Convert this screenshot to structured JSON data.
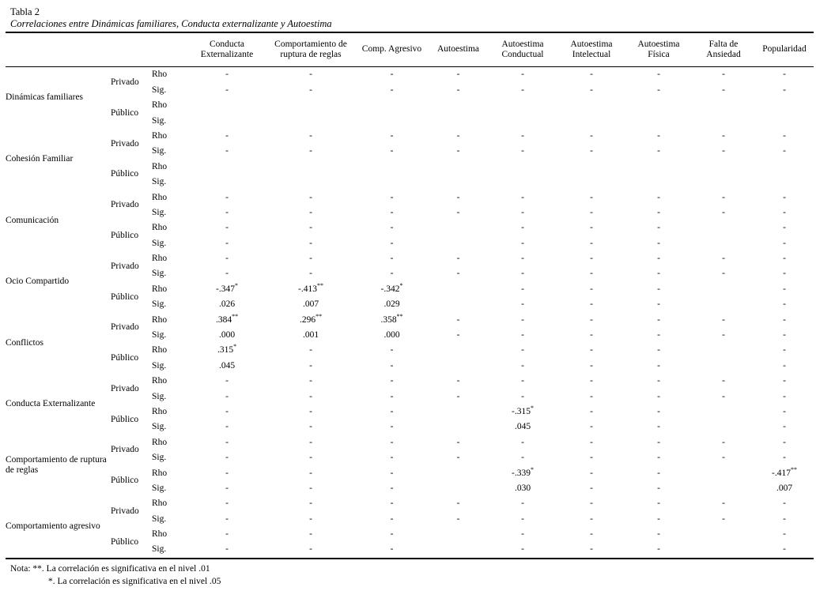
{
  "doc": {
    "table_number": "Tabla 2",
    "table_title": "Correlaciones entre Dinámicas familiares, Conducta externalizante y Autoestima",
    "notes": [
      "Nota: **. La correlación es significativa en el nivel .01",
      "*. La correlación es significativa en el nivel .05"
    ]
  },
  "table": {
    "columns": [
      "Conducta Externalizante",
      "Comportamiento de ruptura de reglas",
      "Comp. Agresivo",
      "Autoestima",
      "Autoestima Conductual",
      "Autoestima Intelectual",
      "Autoestima Física",
      "Falta de Ansiedad",
      "Popularidad"
    ],
    "labels": {
      "privado": "Privado",
      "publico": "Público",
      "rho": "Rho",
      "sig": "Sig."
    },
    "groups": [
      {
        "name": "Dinámicas familiares",
        "privado_rho": [
          "-",
          "-",
          "-",
          "-",
          "-",
          "-",
          "-",
          "-",
          "-"
        ],
        "privado_sig": [
          "-",
          "-",
          "-",
          "-",
          "-",
          "-",
          "-",
          "-",
          "-"
        ],
        "publico_rho": [
          "",
          "",
          "",
          "",
          "",
          "",
          "",
          "",
          ""
        ],
        "publico_sig": [
          "",
          "",
          "",
          "",
          "",
          "",
          "",
          "",
          ""
        ]
      },
      {
        "name": "Cohesión Familiar",
        "privado_rho": [
          "-",
          "-",
          "-",
          "-",
          "-",
          "-",
          "-",
          "-",
          "-"
        ],
        "privado_sig": [
          "-",
          "-",
          "-",
          "-",
          "-",
          "-",
          "-",
          "-",
          "-"
        ],
        "publico_rho": [
          "",
          "",
          "",
          "",
          "",
          "",
          "",
          "",
          ""
        ],
        "publico_sig": [
          "",
          "",
          "",
          "",
          "",
          "",
          "",
          "",
          ""
        ]
      },
      {
        "name": "Comunicación",
        "privado_rho": [
          "-",
          "-",
          "-",
          "-",
          "-",
          "-",
          "-",
          "-",
          "-"
        ],
        "privado_sig": [
          "-",
          "-",
          "-",
          "-",
          "-",
          "-",
          "-",
          "-",
          "-"
        ],
        "publico_rho": [
          "-",
          "-",
          "-",
          "",
          "-",
          "-",
          "-",
          "",
          "-"
        ],
        "publico_sig": [
          "-",
          "-",
          "-",
          "",
          "-",
          "-",
          "-",
          "",
          "-"
        ]
      },
      {
        "name": "Ocio Compartido",
        "privado_rho": [
          "-",
          "-",
          "-",
          "-",
          "-",
          "-",
          "-",
          "-",
          "-"
        ],
        "privado_sig": [
          "-",
          "-",
          "-",
          "-",
          "-",
          "-",
          "-",
          "-",
          "-"
        ],
        "publico_rho": [
          "-.347*",
          "-.413**",
          "-.342*",
          "",
          "-",
          "-",
          "-",
          "",
          "-"
        ],
        "publico_sig": [
          ".026",
          ".007",
          ".029",
          "",
          "-",
          "-",
          "-",
          "",
          "-"
        ]
      },
      {
        "name": "Conflictos",
        "privado_rho": [
          ".384**",
          ".296**",
          ".358**",
          "-",
          "-",
          "-",
          "-",
          "-",
          "-"
        ],
        "privado_sig": [
          ".000",
          ".001",
          ".000",
          "-",
          "-",
          "-",
          "-",
          "-",
          "-"
        ],
        "publico_rho": [
          ".315*",
          "-",
          "-",
          "",
          "-",
          "-",
          "-",
          "",
          "-"
        ],
        "publico_sig": [
          ".045",
          "-",
          "-",
          "",
          "-",
          "-",
          "-",
          "",
          "-"
        ]
      },
      {
        "name": "Conducta Externalizante",
        "privado_rho": [
          "-",
          "-",
          "-",
          "-",
          "-",
          "-",
          "-",
          "-",
          "-"
        ],
        "privado_sig": [
          "-",
          "-",
          "-",
          "-",
          "-",
          "-",
          "-",
          "-",
          "-"
        ],
        "publico_rho": [
          "-",
          "-",
          "-",
          "",
          "-.315*",
          "-",
          "-",
          "",
          "-"
        ],
        "publico_sig": [
          "-",
          "-",
          "-",
          "",
          ".045",
          "-",
          "-",
          "",
          "-"
        ]
      },
      {
        "name": "Comportamiento de ruptura de reglas",
        "privado_rho": [
          "-",
          "-",
          "-",
          "-",
          "-",
          "-",
          "-",
          "-",
          "-"
        ],
        "privado_sig": [
          "-",
          "-",
          "-",
          "-",
          "-",
          "-",
          "-",
          "-",
          "-"
        ],
        "publico_rho": [
          "-",
          "-",
          "-",
          "",
          "-.339*",
          "-",
          "-",
          "",
          "-.417**"
        ],
        "publico_sig": [
          "-",
          "-",
          "-",
          "",
          ".030",
          "-",
          "-",
          "",
          ".007"
        ]
      },
      {
        "name": "Comportamiento agresivo",
        "privado_rho": [
          "-",
          "-",
          "-",
          "-",
          "-",
          "-",
          "-",
          "-",
          "-"
        ],
        "privado_sig": [
          "-",
          "-",
          "-",
          "-",
          "-",
          "-",
          "-",
          "-",
          "-"
        ],
        "publico_rho": [
          "-",
          "-",
          "-",
          "",
          "-",
          "-",
          "-",
          "",
          "-"
        ],
        "publico_sig": [
          "-",
          "-",
          "-",
          "",
          "-",
          "-",
          "-",
          "",
          "-"
        ]
      }
    ]
  }
}
